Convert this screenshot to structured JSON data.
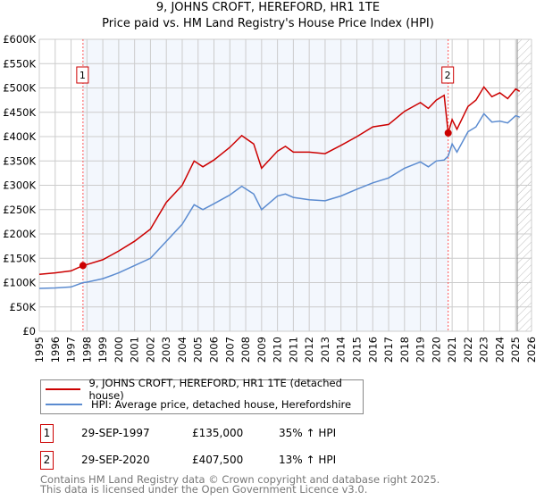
{
  "title": "9, JOHNS CROFT, HEREFORD, HR1 1TE",
  "subtitle": "Price paid vs. HM Land Registry's House Price Index (HPI)",
  "chart_data": {
    "type": "line",
    "xlim": [
      1995,
      2026
    ],
    "ylim": [
      0,
      600000
    ],
    "xticks": [
      1995,
      1996,
      1997,
      1998,
      1999,
      2000,
      2001,
      2002,
      2003,
      2004,
      2005,
      2006,
      2007,
      2008,
      2009,
      2010,
      2011,
      2012,
      2013,
      2014,
      2015,
      2016,
      2017,
      2018,
      2019,
      2020,
      2021,
      2022,
      2023,
      2024,
      2025,
      2026
    ],
    "yticks": [
      {
        "v": 0,
        "label": "£0"
      },
      {
        "v": 50000,
        "label": "£50K"
      },
      {
        "v": 100000,
        "label": "£100K"
      },
      {
        "v": 150000,
        "label": "£150K"
      },
      {
        "v": 200000,
        "label": "£200K"
      },
      {
        "v": 250000,
        "label": "£250K"
      },
      {
        "v": 300000,
        "label": "£300K"
      },
      {
        "v": 350000,
        "label": "£350K"
      },
      {
        "v": 400000,
        "label": "£400K"
      },
      {
        "v": 450000,
        "label": "£450K"
      },
      {
        "v": 500000,
        "label": "£500K"
      },
      {
        "v": 550000,
        "label": "£550K"
      },
      {
        "v": 600000,
        "label": "£600K"
      }
    ],
    "shaded_range": [
      1997.75,
      2020.75
    ],
    "hatched_from": 2025.1,
    "series": [
      {
        "name": "9, JOHNS CROFT, HEREFORD, HR1 1TE (detached house)",
        "color": "#cc0000",
        "x": [
          1995,
          1996,
          1997,
          1997.75,
          1998,
          1999,
          2000,
          2001,
          2002,
          2003,
          2004,
          2004.75,
          2005.3,
          2006,
          2007,
          2007.75,
          2008.5,
          2009,
          2010,
          2010.5,
          2011,
          2012,
          2013,
          2014,
          2015,
          2016,
          2017,
          2018,
          2019,
          2019.5,
          2020,
          2020.5,
          2020.75,
          2021,
          2021.3,
          2022,
          2022.5,
          2023,
          2023.5,
          2024,
          2024.5,
          2025,
          2025.25
        ],
        "y": [
          117000,
          120000,
          124000,
          135000,
          137000,
          147000,
          165000,
          185000,
          210000,
          265000,
          300000,
          350000,
          338000,
          352000,
          378000,
          402000,
          385000,
          335000,
          370000,
          380000,
          368000,
          368000,
          365000,
          382000,
          400000,
          420000,
          425000,
          452000,
          470000,
          458000,
          475000,
          485000,
          407500,
          435000,
          415000,
          462000,
          475000,
          502000,
          482000,
          490000,
          478000,
          498000,
          493000
        ]
      },
      {
        "name": "HPI: Average price, detached house, Herefordshire",
        "color": "#5b8bd0",
        "x": [
          1995,
          1996,
          1997,
          1997.75,
          1998,
          1999,
          2000,
          2001,
          2002,
          2003,
          2004,
          2004.75,
          2005.3,
          2006,
          2007,
          2007.75,
          2008.5,
          2009,
          2010,
          2010.5,
          2011,
          2012,
          2013,
          2014,
          2015,
          2016,
          2017,
          2018,
          2019,
          2019.5,
          2020,
          2020.5,
          2020.75,
          2021,
          2021.3,
          2022,
          2022.5,
          2023,
          2023.5,
          2024,
          2024.5,
          2025,
          2025.25
        ],
        "y": [
          88000,
          89000,
          91000,
          100000,
          101000,
          108000,
          120000,
          135000,
          150000,
          185000,
          220000,
          260000,
          250000,
          262000,
          280000,
          298000,
          282000,
          250000,
          278000,
          282000,
          275000,
          270000,
          268000,
          278000,
          292000,
          305000,
          315000,
          335000,
          348000,
          338000,
          350000,
          352000,
          360000,
          385000,
          368000,
          410000,
          420000,
          447000,
          430000,
          432000,
          428000,
          443000,
          440000
        ]
      }
    ],
    "sales": [
      {
        "id": "1",
        "x": 1997.75,
        "y": 135000
      },
      {
        "id": "2",
        "x": 2020.75,
        "y": 407500
      }
    ]
  },
  "legend": {
    "red": "9, JOHNS CROFT, HEREFORD, HR1 1TE (detached house)",
    "blue": "HPI: Average price, detached house, Herefordshire"
  },
  "transactions": [
    {
      "id": "1",
      "date": "29-SEP-1997",
      "price": "£135,000",
      "hpi": "35% ↑ HPI"
    },
    {
      "id": "2",
      "date": "29-SEP-2020",
      "price": "£407,500",
      "hpi": "13% ↑ HPI"
    }
  ],
  "footer": {
    "line1": "Contains HM Land Registry data © Crown copyright and database right 2025.",
    "line2": "This data is licensed under the Open Government Licence v3.0."
  }
}
